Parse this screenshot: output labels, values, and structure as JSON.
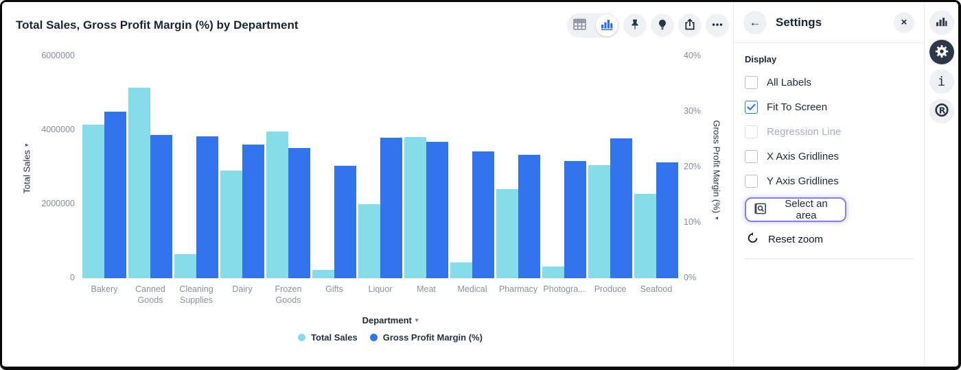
{
  "chart_data": {
    "type": "bar",
    "title": "Total Sales, Gross Profit Margin (%) by Department",
    "xlabel": "Department",
    "categories": [
      "Bakery",
      "Canned Goods",
      "Cleaning Supplies",
      "Dairy",
      "Frozen Goods",
      "Gifts",
      "Liquor",
      "Meat",
      "Medical",
      "Pharmacy",
      "Photogra...",
      "Produce",
      "Seafood"
    ],
    "series": [
      {
        "name": "Total Sales",
        "axis": "left",
        "color": "#86dce8",
        "values": [
          4150000,
          5150000,
          650000,
          2900000,
          3970000,
          220000,
          2000000,
          3810000,
          430000,
          2400000,
          320000,
          3050000,
          2270000
        ]
      },
      {
        "name": "Gross Profit Margin (%)",
        "axis": "right",
        "color": "#3274eb",
        "values": [
          30.0,
          25.8,
          25.6,
          24.1,
          23.5,
          20.2,
          25.3,
          24.6,
          22.8,
          22.2,
          21.1,
          25.2,
          20.9
        ]
      }
    ],
    "left_axis": {
      "title": "Total Sales",
      "min": 0,
      "max": 6000000,
      "ticks": [
        {
          "label": "0",
          "value": 0
        },
        {
          "label": "2000000",
          "value": 2000000
        },
        {
          "label": "4000000",
          "value": 4000000
        },
        {
          "label": "6000000",
          "value": 6000000
        }
      ]
    },
    "right_axis": {
      "title": "Gross Profit Margin (%)",
      "min": 0,
      "max": 40,
      "ticks": [
        {
          "label": "0%",
          "value": 0
        },
        {
          "label": "10%",
          "value": 10
        },
        {
          "label": "20%",
          "value": 20
        },
        {
          "label": "30%",
          "value": 30
        },
        {
          "label": "40%",
          "value": 40
        }
      ]
    },
    "legend_position": "bottom",
    "gridlines": false
  },
  "settings_panel": {
    "title": "Settings",
    "section": "Display",
    "checkboxes": [
      {
        "label": "All Labels",
        "checked": false,
        "disabled": false
      },
      {
        "label": "Fit To Screen",
        "checked": true,
        "disabled": false
      },
      {
        "label": "Regression Line",
        "checked": false,
        "disabled": true
      },
      {
        "label": "X Axis Gridlines",
        "checked": false,
        "disabled": false
      },
      {
        "label": "Y Axis Gridlines",
        "checked": false,
        "disabled": false
      }
    ],
    "select_area_label": "Select an area",
    "reset_zoom_label": "Reset zoom"
  },
  "colors": {
    "total_sales": "#86dce8",
    "gross_profit_margin": "#3274eb",
    "toolbar_active_icon": "#2e6fe8",
    "checked_checkbox": "#2f7bea",
    "select_area_border": "#7c83ec",
    "rail_active_bg": "#2c3849"
  }
}
